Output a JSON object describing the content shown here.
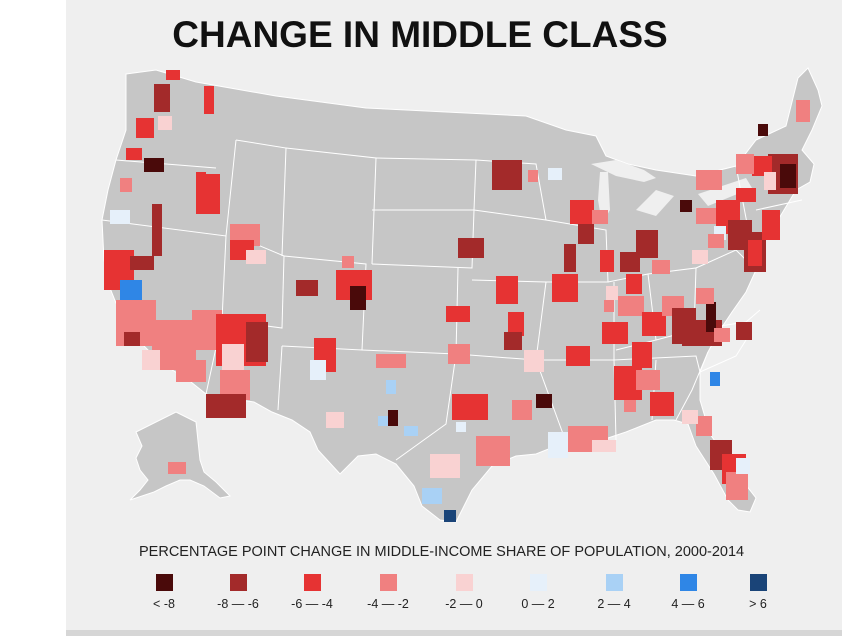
{
  "title": "CHANGE IN MIDDLE CLASS",
  "legend": {
    "title": "PERCENTAGE POINT CHANGE IN MIDDLE-INCOME SHARE OF POPULATION, 2000-2014",
    "items": [
      {
        "label": "< -8",
        "color": "#4a0a0a"
      },
      {
        "label": "-8 — -6",
        "color": "#a32a2a"
      },
      {
        "label": "-6 — -4",
        "color": "#e63333"
      },
      {
        "label": "-4 — -2",
        "color": "#f08080"
      },
      {
        "label": "-2 — 0",
        "color": "#f9d2d2"
      },
      {
        "label": "0 — 2",
        "color": "#e6f0fa"
      },
      {
        "label": "2 — 4",
        "color": "#a9d1f5"
      },
      {
        "label": "4 — 6",
        "color": "#2f86e6"
      },
      {
        "label": "> 6",
        "color": "#1a4478"
      }
    ]
  },
  "colors": {
    "land": "#c6c6c6",
    "background": "#efefef",
    "borders": "#ffffff"
  }
}
